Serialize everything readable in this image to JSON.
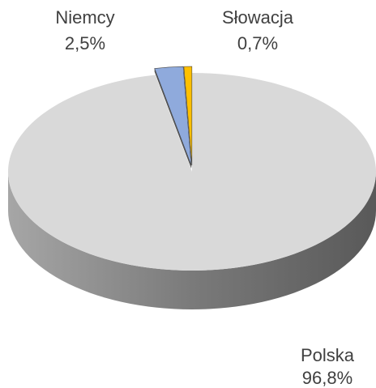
{
  "chart_data": {
    "type": "pie3d",
    "categories": [
      "Polska",
      "Niemcy",
      "Słowacja"
    ],
    "values": [
      96.8,
      2.5,
      0.7
    ],
    "value_labels": [
      "96,8%",
      "2,5%",
      "0,7%"
    ],
    "colors": [
      "#d9d9d9",
      "#8faadc",
      "#ffc000"
    ]
  }
}
